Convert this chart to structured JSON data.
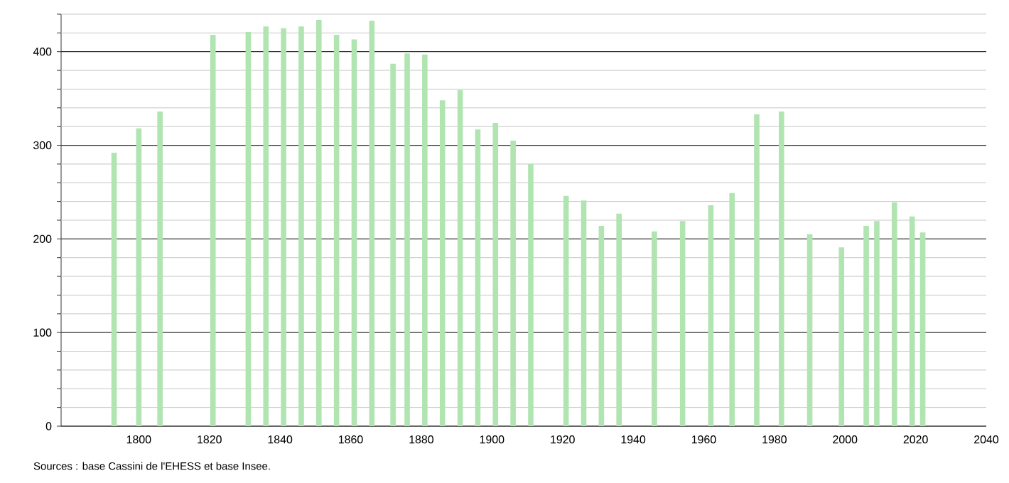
{
  "chart_data": {
    "type": "bar",
    "x": [
      1793,
      1800,
      1806,
      1821,
      1831,
      1836,
      1841,
      1846,
      1851,
      1856,
      1861,
      1866,
      1872,
      1876,
      1881,
      1886,
      1891,
      1896,
      1901,
      1906,
      1911,
      1921,
      1926,
      1931,
      1936,
      1946,
      1954,
      1962,
      1968,
      1975,
      1982,
      1990,
      1999,
      2006,
      2009,
      2014,
      2019,
      2022
    ],
    "values": [
      292,
      318,
      336,
      418,
      421,
      427,
      425,
      427,
      434,
      418,
      413,
      433,
      387,
      398,
      397,
      348,
      359,
      317,
      324,
      305,
      280,
      246,
      241,
      214,
      227,
      208,
      219,
      236,
      249,
      333,
      336,
      205,
      191,
      214,
      219,
      239,
      224,
      207
    ],
    "color": "#b0e4b0",
    "xlim": [
      1778,
      2040
    ],
    "xticks": [
      1800,
      1820,
      1840,
      1860,
      1880,
      1900,
      1920,
      1940,
      1960,
      1980,
      2000,
      2020,
      2040
    ],
    "ylim": [
      0,
      440
    ],
    "yticks": [
      0,
      {
        "value": 20,
        "label": null
      },
      {
        "value": 40,
        "label": null
      },
      {
        "value": 60,
        "label": null
      },
      {
        "value": 80,
        "label": null
      },
      100,
      {
        "value": 120,
        "label": null
      },
      {
        "value": 140,
        "label": null
      },
      {
        "value": 160,
        "label": null
      },
      {
        "value": 180,
        "label": null
      },
      200,
      {
        "value": 220,
        "label": null
      },
      {
        "value": 240,
        "label": null
      },
      {
        "value": 260,
        "label": null
      },
      {
        "value": 280,
        "label": null
      },
      300,
      {
        "value": 320,
        "label": null
      },
      {
        "value": 340,
        "label": null
      },
      {
        "value": 360,
        "label": null
      },
      {
        "value": 380,
        "label": null
      },
      400,
      {
        "value": 420,
        "label": null
      },
      {
        "value": 440,
        "label": null
      }
    ],
    "grid": "y",
    "annotations": [
      "Sources : base Cassini de l'EHESS et base Insee."
    ]
  }
}
